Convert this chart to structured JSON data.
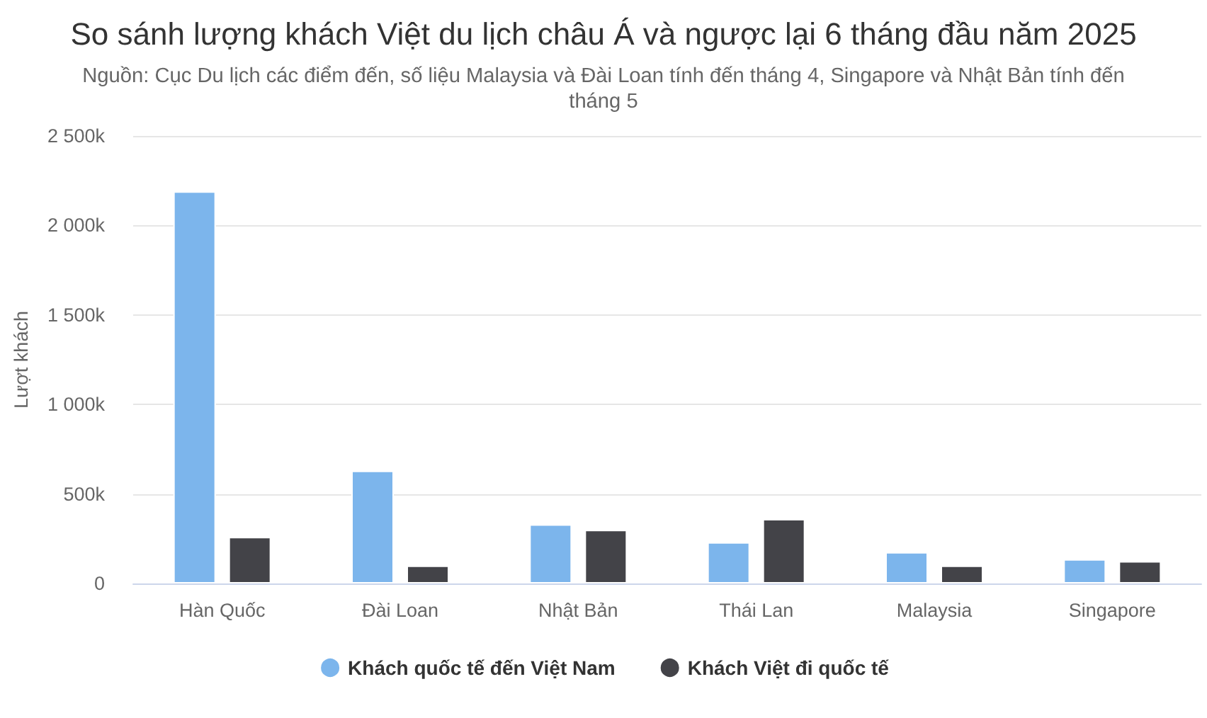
{
  "chart_data": {
    "type": "bar",
    "title": "So sánh lượng khách Việt du lịch châu Á và ngược lại 6 tháng đầu năm 2025",
    "subtitle": "Nguồn: Cục Du lịch các điểm đến, số liệu Malaysia và Đài Loan tính đến tháng 4, Singapore và Nhật Bản tính đến tháng 5",
    "ylabel": "Lượt khách",
    "categories": [
      "Hàn Quốc",
      "Đài Loan",
      "Nhật Bản",
      "Thái Lan",
      "Malaysia",
      "Singapore"
    ],
    "series": [
      {
        "name": "Khách quốc tế đến Việt Nam",
        "color": "#7cb5ec",
        "values": [
          2190,
          630,
          330,
          230,
          175,
          135
        ]
      },
      {
        "name": "Khách Việt đi quốc tế",
        "color": "#434348",
        "values": [
          260,
          100,
          300,
          360,
          100,
          125
        ]
      }
    ],
    "ylim": [
      0,
      2500
    ],
    "yticks": [
      0,
      {
        "value": 500,
        "label": "500k"
      },
      {
        "value": 1000,
        "label": "1 000k"
      },
      {
        "value": 1500,
        "label": "1 500k"
      },
      {
        "value": 2000,
        "label": "2 000k"
      },
      {
        "value": 2500,
        "label": "2 500k"
      }
    ],
    "grid": "y",
    "legend": "bottom"
  }
}
